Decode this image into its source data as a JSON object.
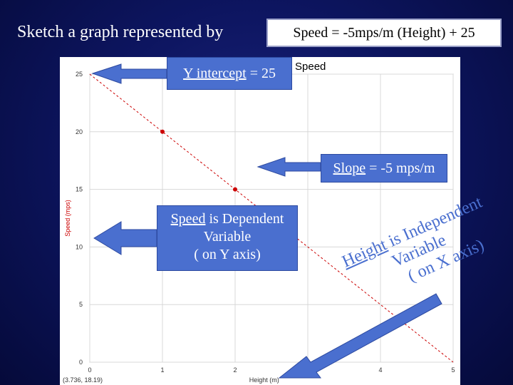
{
  "title": "Sketch a graph represented by",
  "equation": "Speed = -5mps/m (Height) + 25",
  "callouts": {
    "y_intercept": {
      "underlined": "Y intercept",
      "rest": " = 25"
    },
    "slope": {
      "underlined": "Slope",
      "rest": " = -5 mps/m"
    },
    "dependent": {
      "underlined": "Speed",
      "rest": " is Dependent",
      "line2": "Variable",
      "line3": "( on Y axis)"
    },
    "independent": {
      "underlined": "Height",
      "rest": " is Independent",
      "line2": "Variable",
      "line3": "( on X axis)"
    }
  },
  "colors": {
    "callout_fill": "#4a6fcf",
    "line": "#cc0000",
    "axis_label": "#cc0000",
    "background": "#0d1560"
  },
  "chart_data": {
    "type": "line",
    "title": "Speed",
    "xlabel": "Height (m)",
    "ylabel": "Speed (mps)",
    "xlim": [
      0,
      5
    ],
    "ylim": [
      0,
      25
    ],
    "x_ticks": [
      "0",
      "1",
      "2",
      "3",
      "4",
      "5"
    ],
    "y_ticks": [
      "0",
      "5",
      "10",
      "15",
      "20",
      "25"
    ],
    "grid": true,
    "series": [
      {
        "x": [
          0,
          5
        ],
        "y": [
          25,
          0
        ],
        "style": "dashed"
      }
    ],
    "points": [
      {
        "x": 1,
        "y": 20
      },
      {
        "x": 2,
        "y": 15
      }
    ],
    "cursor_readout": "(3.736, 18.19)"
  }
}
